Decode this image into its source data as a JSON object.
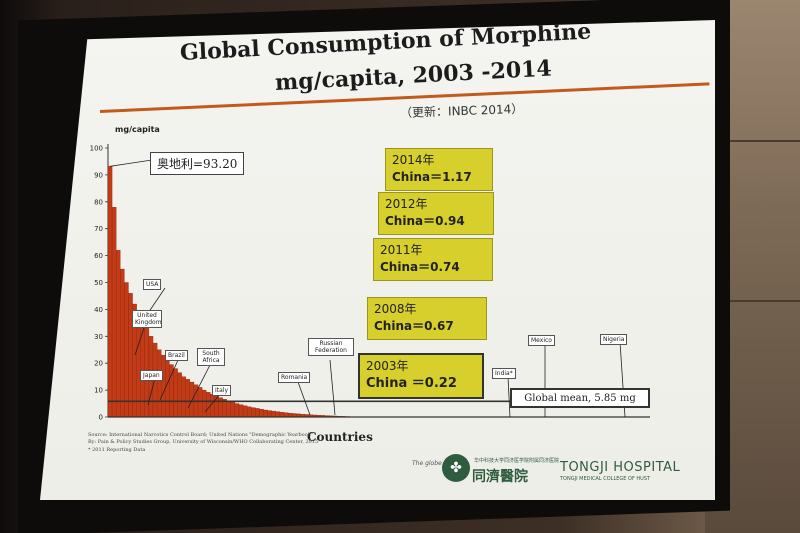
{
  "slide": {
    "title_line1": "Global Consumption of Morphine",
    "title_line2": "mg/capita, 2003 -2014",
    "update_note": "（更新：INBC   2014）",
    "ylabel": "mg/capita",
    "xlabel": "Countries",
    "austria_label": "奥地利=93.20",
    "global_mean_label": "Global mean, 5.85 mg",
    "callouts": [
      {
        "year": "2014年",
        "value": "China＝1.17"
      },
      {
        "year": "2012年",
        "value": "China＝0.94"
      },
      {
        "year": "2011年",
        "value": "China＝0.74"
      },
      {
        "year": "2008年",
        "value": "China＝0.67"
      },
      {
        "year": "2003年",
        "value": "China  ＝0.22"
      }
    ],
    "country_labels": [
      "USA",
      "United Kingdom",
      "Brazil",
      "Japan",
      "South Africa",
      "Italy",
      "Romania",
      "Russian Federation",
      "India*",
      "Mexico",
      "Nigeria"
    ],
    "source_lines": [
      "Source: International Narcotics Control Board; United Nations \"Demographic Yearbook\"",
      "By: Pain & Policy Studies Group, University of Wisconsin/WHO Collaborating Center, 2015",
      "* 2011 Reporting Data"
    ],
    "footer_prefix": "The globe",
    "logo": {
      "mark": "✤",
      "cn_small": "华中科技大学同济医学院附属同济医院",
      "cn": "同濟醫院",
      "en": "TONGJI HOSPITAL",
      "en_sub": "TONGJI MEDICAL COLLEGE OF HUST"
    }
  },
  "chart_data": {
    "type": "bar",
    "title": "Global Consumption of Morphine mg/capita, 2003 -2014",
    "xlabel": "Countries",
    "ylabel": "mg/capita",
    "ylim": [
      0,
      100
    ],
    "yticks": [
      "0",
      "10",
      "20",
      "30",
      "40",
      "50",
      "60",
      "70",
      "80",
      "90",
      "100"
    ],
    "values": [
      93.2,
      78,
      62,
      55,
      50,
      46,
      42,
      39,
      36,
      33,
      30,
      27.5,
      25,
      23,
      21,
      19.5,
      18,
      16.5,
      15,
      14,
      13,
      12,
      11,
      10,
      9.2,
      8.5,
      7.8,
      7.2,
      6.6,
      6,
      5.5,
      5,
      4.6,
      4.2,
      3.8,
      3.5,
      3.2,
      2.9,
      2.6,
      2.4,
      2.2,
      2,
      1.8,
      1.6,
      1.45,
      1.3,
      1.17,
      1.05,
      0.95,
      0.85,
      0.75,
      0.67,
      0.6,
      0.52,
      0.45,
      0.38,
      0.3,
      0.24,
      0.18,
      0.13,
      0.09,
      0.06,
      0.04,
      0.02
    ],
    "global_mean": 5.85,
    "bar_color": "#c23b16"
  }
}
